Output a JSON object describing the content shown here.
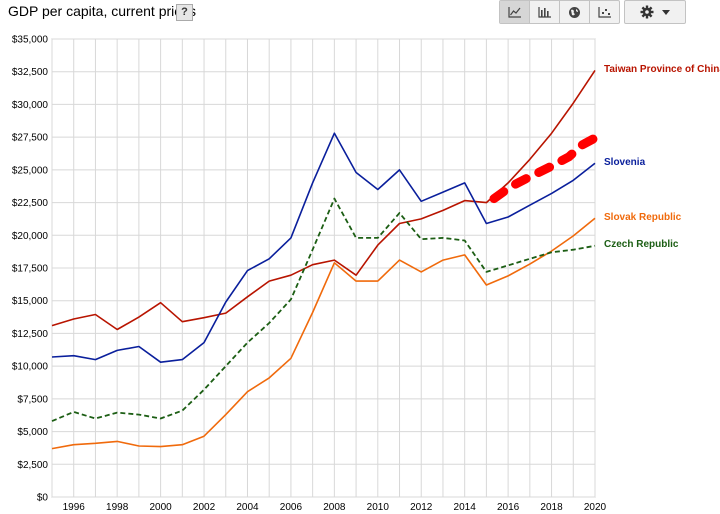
{
  "header": {
    "title": "GDP per capita, current prices",
    "help_label": "?"
  },
  "toolbar": {
    "buttons": [
      {
        "name": "line-chart-icon",
        "active": true
      },
      {
        "name": "bar-chart-icon",
        "active": false
      },
      {
        "name": "globe-icon",
        "active": false
      },
      {
        "name": "scatter-icon",
        "active": false
      }
    ],
    "settings_icon": "gear-icon"
  },
  "colors": {
    "taiwan": "#b81400",
    "slovenia": "#0a1f9c",
    "slovak": "#f06a0c",
    "czech": "#1c5e14",
    "highlight": "#ff0000",
    "grid": "#d8d8d8"
  },
  "chart_data": {
    "type": "line",
    "title": "GDP per capita, current prices",
    "xlim": [
      1995,
      2020
    ],
    "ylim": [
      0,
      35000
    ],
    "x_ticks": [
      1996,
      1998,
      2000,
      2002,
      2004,
      2006,
      2008,
      2010,
      2012,
      2014,
      2016,
      2018,
      2020
    ],
    "x_tick_labels": [
      "1996",
      "1998",
      "2000",
      "2002",
      "2004",
      "2006",
      "2008",
      "2010",
      "2012",
      "2014",
      "2016",
      "2018",
      "2020"
    ],
    "y_ticks": [
      0,
      2500,
      5000,
      7500,
      10000,
      12500,
      15000,
      17500,
      20000,
      22500,
      25000,
      27500,
      30000,
      32500,
      35000
    ],
    "y_tick_labels": [
      "$0",
      "$2,500",
      "$5,000",
      "$7,500",
      "$10,000",
      "$12,500",
      "$15,000",
      "$17,500",
      "$20,000",
      "$22,500",
      "$25,000",
      "$27,500",
      "$30,000",
      "$32,500",
      "$35,000"
    ],
    "grid": true,
    "legend": "end-of-line labels (right)",
    "series": [
      {
        "name": "Taiwan Province of China",
        "color_key": "taiwan",
        "dashed": false,
        "x": [
          1995,
          1996,
          1997,
          1998,
          1999,
          2000,
          2001,
          2002,
          2003,
          2004,
          2005,
          2006,
          2007,
          2008,
          2009,
          2010,
          2011,
          2012,
          2013,
          2014,
          2015,
          2016,
          2017,
          2018,
          2019,
          2020
        ],
        "y": [
          13100,
          13600,
          13950,
          12800,
          13750,
          14850,
          13400,
          13700,
          14050,
          15300,
          16500,
          16950,
          17750,
          18100,
          16950,
          19250,
          20900,
          21250,
          21900,
          22650,
          22500,
          24000,
          25800,
          27800,
          30100,
          32600
        ]
      },
      {
        "name": "Slovenia",
        "color_key": "slovenia",
        "dashed": false,
        "x": [
          1995,
          1996,
          1997,
          1998,
          1999,
          2000,
          2001,
          2002,
          2003,
          2004,
          2005,
          2006,
          2007,
          2008,
          2009,
          2010,
          2011,
          2012,
          2013,
          2014,
          2015,
          2016,
          2017,
          2018,
          2019,
          2020
        ],
        "y": [
          10700,
          10800,
          10500,
          11200,
          11500,
          10300,
          10500,
          11800,
          14900,
          17300,
          18200,
          19800,
          24000,
          27800,
          24800,
          23500,
          25000,
          22600,
          23300,
          24000,
          20900,
          21400,
          22300,
          23200,
          24200,
          25500
        ]
      },
      {
        "name": "Slovak Republic",
        "color_key": "slovak",
        "dashed": false,
        "x": [
          1995,
          1996,
          1997,
          1998,
          1999,
          2000,
          2001,
          2002,
          2003,
          2004,
          2005,
          2006,
          2007,
          2008,
          2009,
          2010,
          2011,
          2012,
          2013,
          2014,
          2015,
          2016,
          2017,
          2018,
          2019,
          2020
        ],
        "y": [
          3700,
          4000,
          4100,
          4250,
          3900,
          3850,
          4000,
          4650,
          6300,
          8050,
          9100,
          10600,
          14100,
          17900,
          16500,
          16500,
          18100,
          17200,
          18100,
          18500,
          16200,
          16900,
          17800,
          18800,
          19950,
          21300
        ]
      },
      {
        "name": "Czech Republic",
        "color_key": "czech",
        "dashed": true,
        "x": [
          1995,
          1996,
          1997,
          1998,
          1999,
          2000,
          2001,
          2002,
          2003,
          2004,
          2005,
          2006,
          2007,
          2008,
          2009,
          2010,
          2011,
          2012,
          2013,
          2014,
          2015,
          2016,
          2017,
          2018,
          2019,
          2020
        ],
        "y": [
          5800,
          6500,
          6000,
          6450,
          6300,
          6000,
          6600,
          8200,
          10000,
          11800,
          13300,
          15100,
          18900,
          22800,
          19800,
          19800,
          21700,
          19700,
          19800,
          19600,
          17200,
          17700,
          18200,
          18700,
          18900,
          19200
        ]
      }
    ],
    "annotation": {
      "type": "dotted-line",
      "color_key": "highlight",
      "x": [
        2015.35,
        2016.1,
        2016.8,
        2017.9,
        2018.8,
        2019.4,
        2020.3
      ],
      "y": [
        22800,
        23700,
        24300,
        25200,
        26000,
        26900,
        27700
      ]
    }
  }
}
